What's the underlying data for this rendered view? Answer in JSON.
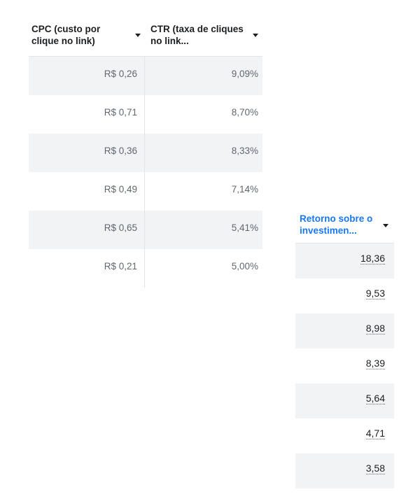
{
  "left_table": {
    "columns": [
      {
        "label": "CPC (custo por clique no link)"
      },
      {
        "label": "CTR (taxa de cliques no link..."
      }
    ],
    "rows": [
      {
        "cpc": "R$ 0,26",
        "ctr": "9,09%"
      },
      {
        "cpc": "R$ 0,71",
        "ctr": "8,70%"
      },
      {
        "cpc": "R$ 0,36",
        "ctr": "8,33%"
      },
      {
        "cpc": "R$ 0,49",
        "ctr": "7,14%"
      },
      {
        "cpc": "R$ 0,65",
        "ctr": "5,41%"
      },
      {
        "cpc": "R$ 0,21",
        "ctr": "5,00%"
      }
    ]
  },
  "right_table": {
    "column": {
      "label": "Retorno sobre o investimen...",
      "color": "#1877f2"
    },
    "rows": [
      "18,36",
      "9,53",
      "8,98",
      "8,39",
      "5,64",
      "4,71",
      "3,58"
    ]
  },
  "icons": {
    "sort": "caret-down-icon"
  },
  "colors": {
    "row_shade": "#f2f3f5",
    "header_accent": "#1877f2",
    "muted_text": "#606770"
  }
}
